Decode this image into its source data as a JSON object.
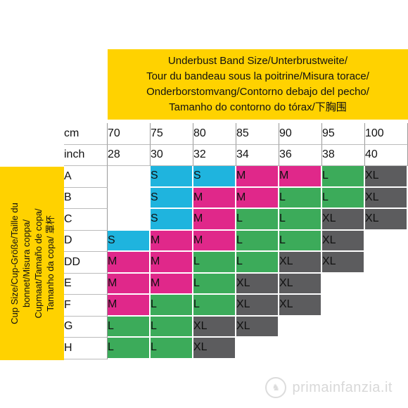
{
  "header": {
    "lines": [
      "Underbust Band Size/Unterbrustweite/",
      "Tour du bandeau sous la poitrine/Misura torace/",
      "Onderborstomvang/Contorno debajo del pecho/",
      "Tamanho do contorno do tórax/下胸围"
    ]
  },
  "side": {
    "lines": [
      "Cup Size/Cup-Größe/Taille du",
      "bonnet/Misura coppa/",
      "Cupmaat/Tamaño de copa/",
      "Tamanho da copa/ 罩杯"
    ]
  },
  "cm": {
    "label": "cm",
    "values": [
      "70",
      "75",
      "80",
      "85",
      "90",
      "95",
      "100"
    ]
  },
  "inch": {
    "label": "inch",
    "values": [
      "28",
      "30",
      "32",
      "34",
      "36",
      "38",
      "40"
    ]
  },
  "colors": {
    "S": "#1fb4de",
    "M": "#e0288a",
    "L": "#3cab5a",
    "XL": "#5c5c5e"
  },
  "rows": [
    {
      "cup": "A",
      "sizes": [
        "",
        "S",
        "S",
        "M",
        "M",
        "L",
        "XL"
      ]
    },
    {
      "cup": "B",
      "sizes": [
        "",
        "S",
        "M",
        "M",
        "L",
        "L",
        "XL"
      ]
    },
    {
      "cup": "C",
      "sizes": [
        "",
        "S",
        "M",
        "L",
        "L",
        "XL",
        "XL"
      ]
    },
    {
      "cup": "D",
      "sizes": [
        "S",
        "M",
        "M",
        "L",
        "L",
        "XL",
        ""
      ]
    },
    {
      "cup": "DD",
      "sizes": [
        "M",
        "M",
        "L",
        "L",
        "XL",
        "XL",
        ""
      ]
    },
    {
      "cup": "E",
      "sizes": [
        "M",
        "M",
        "L",
        "XL",
        "XL",
        "",
        ""
      ]
    },
    {
      "cup": "F",
      "sizes": [
        "M",
        "L",
        "L",
        "XL",
        "XL",
        "",
        ""
      ]
    },
    {
      "cup": "G",
      "sizes": [
        "L",
        "L",
        "XL",
        "XL",
        "",
        "",
        ""
      ]
    },
    {
      "cup": "H",
      "sizes": [
        "L",
        "L",
        "XL",
        "",
        "",
        "",
        ""
      ]
    }
  ],
  "watermark": {
    "icon": "rocking-horse-icon",
    "text": "primainfanzia.it"
  }
}
